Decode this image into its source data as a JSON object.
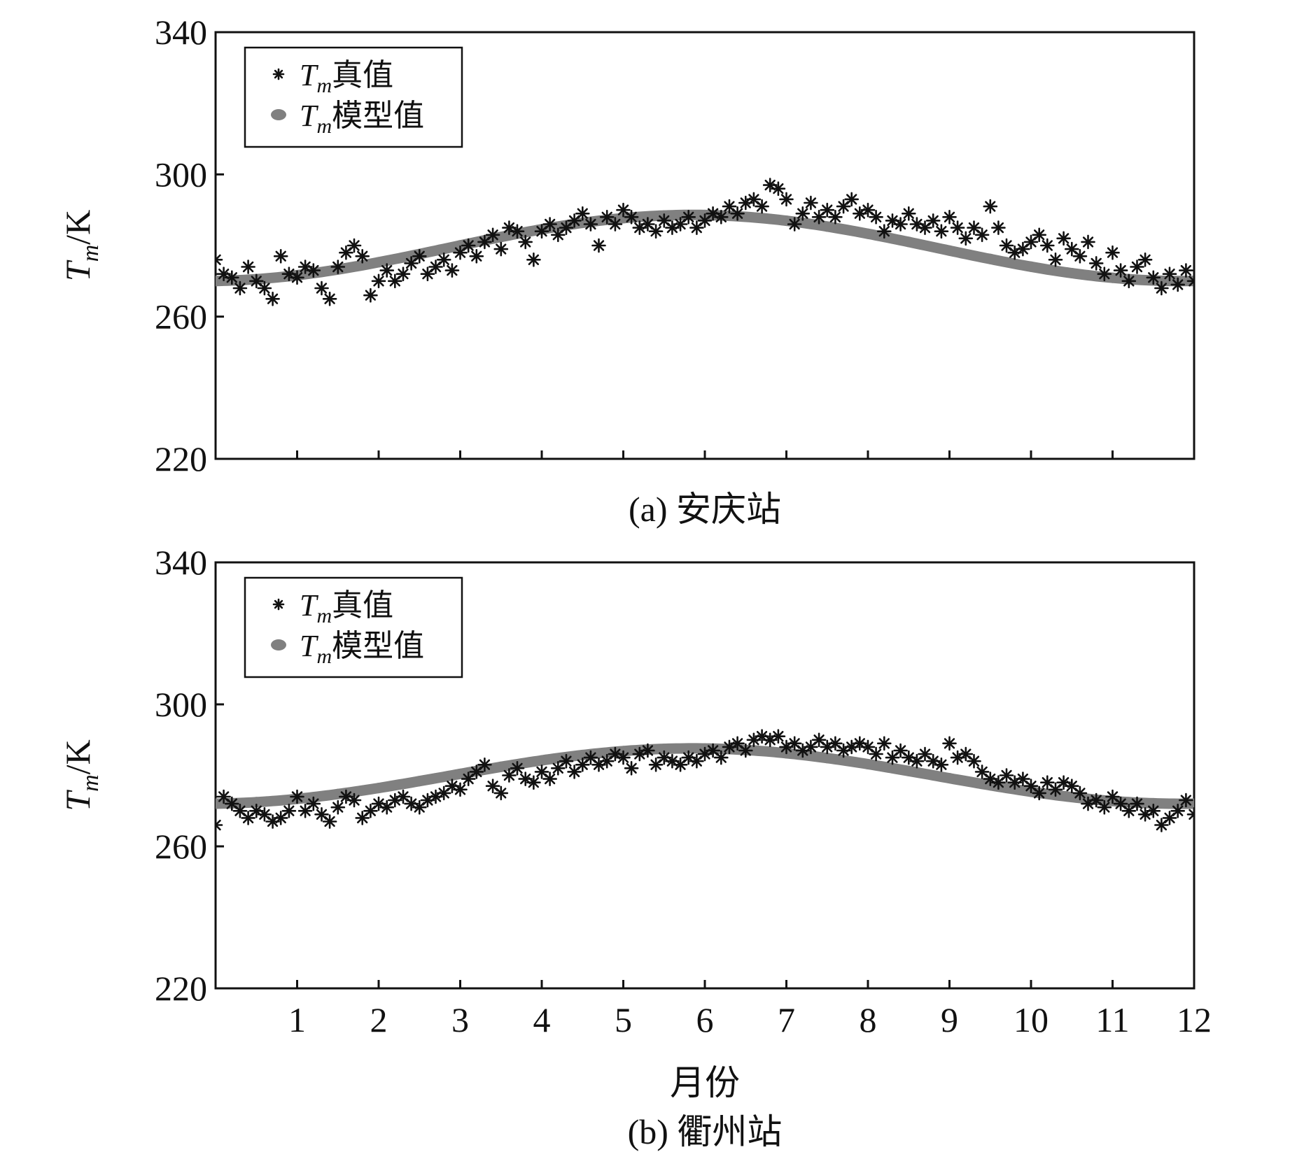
{
  "chart_data": [
    {
      "type": "scatter",
      "caption": "(a) 安庆站",
      "xlabel": "",
      "ylabel": "T_m/K",
      "ylabel_parts": {
        "var": "T",
        "sub": "m",
        "unit": "/K"
      },
      "xlim": [
        0,
        12
      ],
      "ylim": [
        220,
        340
      ],
      "yticks": [
        220,
        260,
        300,
        340
      ],
      "xticks": [
        1,
        2,
        3,
        4,
        5,
        6,
        7,
        8,
        9,
        10,
        11,
        12
      ],
      "show_xtick_labels": false,
      "legend": {
        "position": "top-left",
        "entries": [
          {
            "var": "T",
            "sub": "m",
            "text": "真值",
            "marker": "asterisk"
          },
          {
            "var": "T",
            "sub": "m",
            "text": "模型值",
            "marker": "circle"
          }
        ]
      },
      "series": [
        {
          "name": "T_m 真值",
          "marker": "asterisk",
          "color": "#111111",
          "points": [
            [
              0.0,
              276
            ],
            [
              0.1,
              272
            ],
            [
              0.2,
              271
            ],
            [
              0.3,
              268
            ],
            [
              0.4,
              274
            ],
            [
              0.5,
              270
            ],
            [
              0.6,
              268
            ],
            [
              0.7,
              265
            ],
            [
              0.8,
              277
            ],
            [
              0.9,
              272
            ],
            [
              1.0,
              271
            ],
            [
              1.1,
              274
            ],
            [
              1.2,
              273
            ],
            [
              1.3,
              268
            ],
            [
              1.4,
              265
            ],
            [
              1.5,
              274
            ],
            [
              1.6,
              278
            ],
            [
              1.7,
              280
            ],
            [
              1.8,
              277
            ],
            [
              1.9,
              266
            ],
            [
              2.0,
              270
            ],
            [
              2.1,
              273
            ],
            [
              2.2,
              270
            ],
            [
              2.3,
              272
            ],
            [
              2.4,
              275
            ],
            [
              2.5,
              277
            ],
            [
              2.6,
              272
            ],
            [
              2.7,
              274
            ],
            [
              2.8,
              276
            ],
            [
              2.9,
              273
            ],
            [
              3.0,
              278
            ],
            [
              3.1,
              280
            ],
            [
              3.2,
              277
            ],
            [
              3.3,
              281
            ],
            [
              3.4,
              283
            ],
            [
              3.5,
              279
            ],
            [
              3.6,
              285
            ],
            [
              3.7,
              284
            ],
            [
              3.8,
              281
            ],
            [
              3.9,
              276
            ],
            [
              4.0,
              284
            ],
            [
              4.1,
              286
            ],
            [
              4.2,
              283
            ],
            [
              4.3,
              285
            ],
            [
              4.4,
              287
            ],
            [
              4.5,
              289
            ],
            [
              4.6,
              286
            ],
            [
              4.7,
              280
            ],
            [
              4.8,
              288
            ],
            [
              4.9,
              286
            ],
            [
              5.0,
              290
            ],
            [
              5.1,
              288
            ],
            [
              5.2,
              285
            ],
            [
              5.3,
              286
            ],
            [
              5.4,
              284
            ],
            [
              5.5,
              287
            ],
            [
              5.6,
              285
            ],
            [
              5.7,
              286
            ],
            [
              5.8,
              288
            ],
            [
              5.9,
              285
            ],
            [
              6.0,
              287
            ],
            [
              6.1,
              289
            ],
            [
              6.2,
              288
            ],
            [
              6.3,
              291
            ],
            [
              6.4,
              289
            ],
            [
              6.5,
              292
            ],
            [
              6.6,
              293
            ],
            [
              6.7,
              291
            ],
            [
              6.8,
              297
            ],
            [
              6.9,
              296
            ],
            [
              7.0,
              293
            ],
            [
              7.1,
              286
            ],
            [
              7.2,
              289
            ],
            [
              7.3,
              292
            ],
            [
              7.4,
              288
            ],
            [
              7.5,
              290
            ],
            [
              7.6,
              288
            ],
            [
              7.7,
              291
            ],
            [
              7.8,
              293
            ],
            [
              7.9,
              289
            ],
            [
              8.0,
              290
            ],
            [
              8.1,
              288
            ],
            [
              8.2,
              284
            ],
            [
              8.3,
              287
            ],
            [
              8.4,
              286
            ],
            [
              8.5,
              289
            ],
            [
              8.6,
              286
            ],
            [
              8.7,
              285
            ],
            [
              8.8,
              287
            ],
            [
              8.9,
              284
            ],
            [
              9.0,
              288
            ],
            [
              9.1,
              285
            ],
            [
              9.2,
              282
            ],
            [
              9.3,
              285
            ],
            [
              9.4,
              283
            ],
            [
              9.5,
              291
            ],
            [
              9.6,
              285
            ],
            [
              9.7,
              280
            ],
            [
              9.8,
              278
            ],
            [
              9.9,
              279
            ],
            [
              10.0,
              281
            ],
            [
              10.1,
              283
            ],
            [
              10.2,
              280
            ],
            [
              10.3,
              276
            ],
            [
              10.4,
              282
            ],
            [
              10.5,
              279
            ],
            [
              10.6,
              277
            ],
            [
              10.7,
              281
            ],
            [
              10.8,
              275
            ],
            [
              10.9,
              272
            ],
            [
              11.0,
              278
            ],
            [
              11.1,
              273
            ],
            [
              11.2,
              270
            ],
            [
              11.3,
              274
            ],
            [
              11.4,
              276
            ],
            [
              11.5,
              271
            ],
            [
              11.6,
              268
            ],
            [
              11.7,
              272
            ],
            [
              11.8,
              269
            ],
            [
              11.9,
              273
            ],
            [
              12.0,
              270
            ]
          ]
        },
        {
          "name": "T_m 模型值",
          "marker": "circle",
          "color": "#808080",
          "model": {
            "mean": 279.3,
            "amplitude": 9.3,
            "phase_month": 5.85,
            "period": 12
          },
          "x": [
            0,
            0.5,
            1,
            1.5,
            2,
            2.5,
            3,
            3.5,
            4,
            4.5,
            5,
            5.5,
            6,
            6.5,
            7,
            7.5,
            8,
            8.5,
            9,
            9.5,
            10,
            10.5,
            11,
            11.5,
            12
          ]
        }
      ]
    },
    {
      "type": "scatter",
      "caption": "(b) 衢州站",
      "xlabel": "月份",
      "ylabel": "T_m/K",
      "ylabel_parts": {
        "var": "T",
        "sub": "m",
        "unit": "/K"
      },
      "xlim": [
        0,
        12
      ],
      "ylim": [
        220,
        340
      ],
      "yticks": [
        220,
        260,
        300,
        340
      ],
      "xticks": [
        1,
        2,
        3,
        4,
        5,
        6,
        7,
        8,
        9,
        10,
        11,
        12
      ],
      "xtick_labels": [
        "1",
        "2",
        "3",
        "4",
        "5",
        "6",
        "7",
        "8",
        "9",
        "10",
        "11",
        "12"
      ],
      "show_xtick_labels": true,
      "legend": {
        "position": "top-left",
        "entries": [
          {
            "var": "T",
            "sub": "m",
            "text": "真值",
            "marker": "asterisk"
          },
          {
            "var": "T",
            "sub": "m",
            "text": "模型值",
            "marker": "circle"
          }
        ]
      },
      "series": [
        {
          "name": "T_m 真值",
          "marker": "asterisk",
          "color": "#111111",
          "points": [
            [
              0.0,
              266
            ],
            [
              0.1,
              274
            ],
            [
              0.2,
              272
            ],
            [
              0.3,
              270
            ],
            [
              0.4,
              268
            ],
            [
              0.5,
              270
            ],
            [
              0.6,
              269
            ],
            [
              0.7,
              267
            ],
            [
              0.8,
              268
            ],
            [
              0.9,
              270
            ],
            [
              1.0,
              274
            ],
            [
              1.1,
              270
            ],
            [
              1.2,
              272
            ],
            [
              1.3,
              269
            ],
            [
              1.4,
              267
            ],
            [
              1.5,
              271
            ],
            [
              1.6,
              274
            ],
            [
              1.7,
              273
            ],
            [
              1.8,
              268
            ],
            [
              1.9,
              270
            ],
            [
              2.0,
              272
            ],
            [
              2.1,
              271
            ],
            [
              2.2,
              273
            ],
            [
              2.3,
              274
            ],
            [
              2.4,
              272
            ],
            [
              2.5,
              271
            ],
            [
              2.6,
              273
            ],
            [
              2.7,
              274
            ],
            [
              2.8,
              275
            ],
            [
              2.9,
              277
            ],
            [
              3.0,
              276
            ],
            [
              3.1,
              279
            ],
            [
              3.2,
              281
            ],
            [
              3.3,
              283
            ],
            [
              3.4,
              277
            ],
            [
              3.5,
              275
            ],
            [
              3.6,
              280
            ],
            [
              3.7,
              282
            ],
            [
              3.8,
              279
            ],
            [
              3.9,
              278
            ],
            [
              4.0,
              281
            ],
            [
              4.1,
              279
            ],
            [
              4.2,
              282
            ],
            [
              4.3,
              284
            ],
            [
              4.4,
              281
            ],
            [
              4.5,
              283
            ],
            [
              4.6,
              285
            ],
            [
              4.7,
              283
            ],
            [
              4.8,
              284
            ],
            [
              4.9,
              286
            ],
            [
              5.0,
              285
            ],
            [
              5.1,
              282
            ],
            [
              5.2,
              286
            ],
            [
              5.3,
              287
            ],
            [
              5.4,
              283
            ],
            [
              5.5,
              285
            ],
            [
              5.6,
              284
            ],
            [
              5.7,
              283
            ],
            [
              5.8,
              285
            ],
            [
              5.9,
              284
            ],
            [
              6.0,
              286
            ],
            [
              6.1,
              287
            ],
            [
              6.2,
              285
            ],
            [
              6.3,
              288
            ],
            [
              6.4,
              289
            ],
            [
              6.5,
              287
            ],
            [
              6.6,
              290
            ],
            [
              6.7,
              291
            ],
            [
              6.8,
              290
            ],
            [
              6.9,
              291
            ],
            [
              7.0,
              288
            ],
            [
              7.1,
              289
            ],
            [
              7.2,
              287
            ],
            [
              7.3,
              288
            ],
            [
              7.4,
              290
            ],
            [
              7.5,
              288
            ],
            [
              7.6,
              289
            ],
            [
              7.7,
              287
            ],
            [
              7.8,
              288
            ],
            [
              7.9,
              289
            ],
            [
              8.0,
              288
            ],
            [
              8.1,
              286
            ],
            [
              8.2,
              289
            ],
            [
              8.3,
              285
            ],
            [
              8.4,
              287
            ],
            [
              8.5,
              285
            ],
            [
              8.6,
              284
            ],
            [
              8.7,
              286
            ],
            [
              8.8,
              284
            ],
            [
              8.9,
              283
            ],
            [
              9.0,
              289
            ],
            [
              9.1,
              285
            ],
            [
              9.2,
              286
            ],
            [
              9.3,
              284
            ],
            [
              9.4,
              281
            ],
            [
              9.5,
              279
            ],
            [
              9.6,
              278
            ],
            [
              9.7,
              280
            ],
            [
              9.8,
              278
            ],
            [
              9.9,
              279
            ],
            [
              10.0,
              277
            ],
            [
              10.1,
              275
            ],
            [
              10.2,
              278
            ],
            [
              10.3,
              276
            ],
            [
              10.4,
              278
            ],
            [
              10.5,
              277
            ],
            [
              10.6,
              275
            ],
            [
              10.7,
              272
            ],
            [
              10.8,
              273
            ],
            [
              10.9,
              271
            ],
            [
              11.0,
              274
            ],
            [
              11.1,
              272
            ],
            [
              11.2,
              270
            ],
            [
              11.3,
              272
            ],
            [
              11.4,
              269
            ],
            [
              11.5,
              270
            ],
            [
              11.6,
              266
            ],
            [
              11.7,
              268
            ],
            [
              11.8,
              270
            ],
            [
              11.9,
              273
            ],
            [
              12.0,
              269
            ]
          ]
        },
        {
          "name": "T_m 模型值",
          "marker": "circle",
          "color": "#808080",
          "model": {
            "mean": 279.8,
            "amplitude": 7.8,
            "phase_month": 5.85,
            "period": 12
          },
          "x": [
            0,
            0.5,
            1,
            1.5,
            2,
            2.5,
            3,
            3.5,
            4,
            4.5,
            5,
            5.5,
            6,
            6.5,
            7,
            7.5,
            8,
            8.5,
            9,
            9.5,
            10,
            10.5,
            11,
            11.5,
            12
          ]
        }
      ]
    }
  ]
}
